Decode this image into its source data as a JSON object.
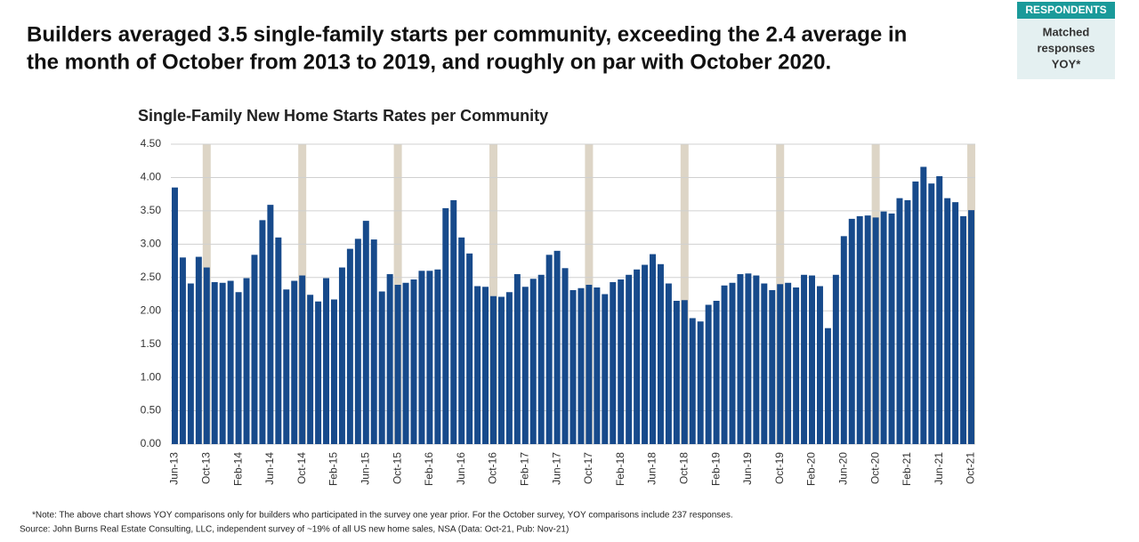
{
  "headline": [
    "Builders averaged 3.5 single-family starts per community, exceeding the 2.4 average in",
    "the month of October from 2013 to 2019, and roughly on par with October 2020."
  ],
  "badge": {
    "title": "RESPONDENTS",
    "lines": [
      "Matched",
      "responses",
      "YOY*"
    ]
  },
  "chart_data": {
    "type": "bar",
    "title": "Single-Family New Home Starts Rates per Community",
    "categories": [
      "Jun-13",
      null,
      null,
      null,
      "Oct-13",
      null,
      null,
      null,
      "Feb-14",
      null,
      null,
      null,
      "Jun-14",
      null,
      null,
      null,
      "Oct-14",
      null,
      null,
      null,
      "Feb-15",
      null,
      null,
      null,
      "Jun-15",
      null,
      null,
      null,
      "Oct-15",
      null,
      null,
      null,
      "Feb-16",
      null,
      null,
      null,
      "Jun-16",
      null,
      null,
      null,
      "Oct-16",
      null,
      null,
      null,
      "Feb-17",
      null,
      null,
      null,
      "Jun-17",
      null,
      null,
      null,
      "Oct-17",
      null,
      null,
      null,
      "Feb-18",
      null,
      null,
      null,
      "Jun-18",
      null,
      null,
      null,
      "Oct-18",
      null,
      null,
      null,
      "Feb-19",
      null,
      null,
      null,
      "Jun-19",
      null,
      null,
      null,
      "Oct-19",
      null,
      null,
      null,
      "Feb-20",
      null,
      null,
      null,
      "Jun-20",
      null,
      null,
      null,
      "Oct-20",
      null,
      null,
      null,
      "Feb-21",
      null,
      null,
      null,
      "Jun-21",
      null,
      null,
      null,
      "Oct-21"
    ],
    "values": [
      3.85,
      2.8,
      2.41,
      2.81,
      2.65,
      2.43,
      2.42,
      2.45,
      2.28,
      2.49,
      2.84,
      3.36,
      3.59,
      3.1,
      2.32,
      2.45,
      2.53,
      2.24,
      2.14,
      2.49,
      2.17,
      2.65,
      2.93,
      3.08,
      3.35,
      3.07,
      2.29,
      2.55,
      2.39,
      2.42,
      2.47,
      2.6,
      2.6,
      2.62,
      3.54,
      3.66,
      3.1,
      2.86,
      2.37,
      2.36,
      2.22,
      2.21,
      2.28,
      2.55,
      2.36,
      2.48,
      2.54,
      2.84,
      2.9,
      2.64,
      2.31,
      2.34,
      2.39,
      2.35,
      2.25,
      2.43,
      2.47,
      2.54,
      2.62,
      2.69,
      2.85,
      2.7,
      2.41,
      2.15,
      2.16,
      1.89,
      1.84,
      2.09,
      2.15,
      2.38,
      2.42,
      2.55,
      2.56,
      2.53,
      2.41,
      2.31,
      2.4,
      2.42,
      2.35,
      2.54,
      2.53,
      2.37,
      1.74,
      2.54,
      3.12,
      3.38,
      3.42,
      3.43,
      3.4,
      3.49,
      3.46,
      3.69,
      3.66,
      3.94,
      4.16,
      3.91,
      4.02,
      3.69,
      3.63,
      3.42,
      3.51
    ],
    "color": "#174a8b",
    "highlight_indices": [
      4,
      16,
      28,
      40,
      52,
      64,
      76,
      88,
      100
    ],
    "highlight_color": "#ddd5c6",
    "ylim": [
      0,
      4.5
    ],
    "yticks": [
      {
        "value": 0,
        "label": "0.00"
      },
      {
        "value": 0.5,
        "label": "0.50"
      },
      {
        "value": 1,
        "label": "1.00"
      },
      {
        "value": 1.5,
        "label": "1.50"
      },
      {
        "value": 2,
        "label": "2.00"
      },
      {
        "value": 2.5,
        "label": "2.50"
      },
      {
        "value": 3,
        "label": "3.00"
      },
      {
        "value": 3.5,
        "label": "3.50"
      },
      {
        "value": 4,
        "label": "4.00"
      },
      {
        "value": 4.5,
        "label": "4.50"
      }
    ],
    "grid": true
  },
  "footer": {
    "note": "*Note: The above chart shows YOY comparisons only for builders who participated in the survey one year prior. For the October survey, YOY comparisons include 237 responses.",
    "source": "Source: John Burns Real Estate Consulting, LLC, independent survey of ~19% of all US new home sales, NSA (Data: Oct-21, Pub: Nov-21)"
  }
}
